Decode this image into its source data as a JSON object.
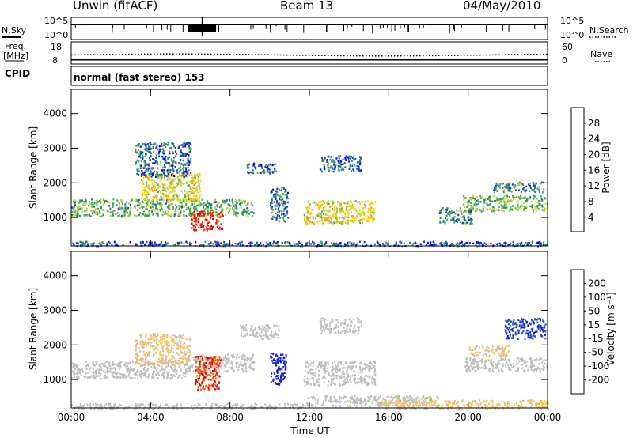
{
  "header": {
    "station": "Unwin (fitACF)",
    "beam": "Beam 13",
    "date": "04/May/2010"
  },
  "summary": {
    "nsky_label": "N.Sky",
    "nsky_ticks": [
      "10^5",
      "10^0"
    ],
    "nsearch_label": "N.Search",
    "nsearch_ticks": [
      "10^5",
      "10^0"
    ],
    "freq_label_1": "Freq.",
    "freq_label_2": "[MHz]",
    "freq_ticks": [
      "18",
      "8"
    ],
    "nave_label": "Nave",
    "nave_ticks": [
      "60",
      "0"
    ],
    "cpid_label": "CPID",
    "cpid_value": "normal (fast stereo) 153"
  },
  "colors": {
    "power": [
      "#0000ff",
      "#1f3fc8",
      "#2e8b57",
      "#4db070",
      "#b8d830",
      "#ffd000",
      "#ff9a00",
      "#ff6a00",
      "#ff2a00",
      "#ee0000"
    ],
    "velocity": [
      "#ee0000",
      "#ff5a00",
      "#ff9a20",
      "#f5c060",
      "#bebebe",
      "#bebebe",
      "#7ccf50",
      "#3c9a3c",
      "#2a50b8",
      "#1020c8"
    ],
    "ground_scatter": "#bebebe"
  },
  "chart_data": [
    {
      "type": "heatmap",
      "name": "power",
      "ylabel": "Slant Range [km]",
      "xlabel": "Time UT",
      "x_ticks": [
        "00:00",
        "04:00",
        "08:00",
        "12:00",
        "16:00",
        "20:00",
        "00:00"
      ],
      "x_range_hours": [
        0,
        24
      ],
      "y_ticks": [
        1000,
        2000,
        3000,
        4000
      ],
      "y_range_km": [
        180,
        4700
      ],
      "colorbar": {
        "label": "Power [dB]",
        "ticks": [
          "28",
          "24",
          "20",
          "16",
          "12",
          "8",
          "4"
        ],
        "range": [
          0,
          30
        ]
      },
      "regions": [
        {
          "t0": 0.0,
          "t1": 9.2,
          "r0": 1050,
          "r1": 1550,
          "level": 10
        },
        {
          "t0": 3.5,
          "t1": 6.5,
          "r0": 1500,
          "r1": 2300,
          "level": 15
        },
        {
          "t0": 3.2,
          "t1": 6.0,
          "r0": 2200,
          "r1": 3200,
          "level": 6
        },
        {
          "t0": 6.0,
          "t1": 7.6,
          "r0": 650,
          "r1": 1200,
          "level": 27
        },
        {
          "t0": 8.8,
          "t1": 10.4,
          "r0": 2300,
          "r1": 2600,
          "level": 6
        },
        {
          "t0": 10.0,
          "t1": 10.9,
          "r0": 900,
          "r1": 1900,
          "level": 7
        },
        {
          "t0": 11.7,
          "t1": 15.3,
          "r0": 850,
          "r1": 1500,
          "level": 16
        },
        {
          "t0": 12.5,
          "t1": 14.6,
          "r0": 2350,
          "r1": 2800,
          "level": 6
        },
        {
          "t0": 18.5,
          "t1": 20.2,
          "r0": 850,
          "r1": 1300,
          "level": 8
        },
        {
          "t0": 19.7,
          "t1": 24.0,
          "r0": 1200,
          "r1": 1650,
          "level": 11
        },
        {
          "t0": 21.2,
          "t1": 23.8,
          "r0": 1750,
          "r1": 2050,
          "level": 8
        },
        {
          "t0": 0.0,
          "t1": 24.0,
          "r0": 180,
          "r1": 330,
          "level": 5
        }
      ]
    },
    {
      "type": "heatmap",
      "name": "velocity",
      "ylabel": "Slant Range [km]",
      "xlabel": "Time UT",
      "x_ticks": [
        "00:00",
        "04:00",
        "08:00",
        "12:00",
        "16:00",
        "20:00",
        "00:00"
      ],
      "x_range_hours": [
        0,
        24
      ],
      "y_ticks": [
        1000,
        2000,
        3000,
        4000
      ],
      "y_range_km": [
        180,
        4700
      ],
      "colorbar": {
        "label": "Velocity [m s⁻¹]",
        "ticks": [
          "200",
          "100",
          "50",
          "15",
          "-15",
          "-50",
          "-100",
          "-200"
        ],
        "range": [
          -250,
          250
        ]
      },
      "regions": [
        {
          "t0": 0.0,
          "t1": 5.8,
          "r0": 1050,
          "r1": 1550,
          "value": 0
        },
        {
          "t0": 3.2,
          "t1": 6.0,
          "r0": 1450,
          "r1": 2350,
          "value": -60
        },
        {
          "t0": 5.8,
          "t1": 9.2,
          "r0": 1250,
          "r1": 1750,
          "value": 0
        },
        {
          "t0": 6.2,
          "t1": 7.5,
          "r0": 700,
          "r1": 1700,
          "value": -200
        },
        {
          "t0": 8.5,
          "t1": 10.5,
          "r0": 2200,
          "r1": 2600,
          "value": 0
        },
        {
          "t0": 10.0,
          "t1": 10.8,
          "r0": 850,
          "r1": 1800,
          "value": 230
        },
        {
          "t0": 11.7,
          "t1": 15.3,
          "r0": 850,
          "r1": 1550,
          "value": 0
        },
        {
          "t0": 12.5,
          "t1": 14.6,
          "r0": 2350,
          "r1": 2800,
          "value": 0
        },
        {
          "t0": 19.8,
          "t1": 24.0,
          "r0": 1250,
          "r1": 1650,
          "value": 0
        },
        {
          "t0": 20.0,
          "t1": 22.0,
          "r0": 1700,
          "r1": 2000,
          "value": -60
        },
        {
          "t0": 21.8,
          "t1": 23.9,
          "r0": 2200,
          "r1": 2800,
          "value": 200
        },
        {
          "t0": 11.8,
          "t1": 18.5,
          "r0": 250,
          "r1": 550,
          "value": 30
        },
        {
          "t0": 15.5,
          "t1": 24.0,
          "r0": 180,
          "r1": 430,
          "value": -70
        },
        {
          "t0": 0.0,
          "t1": 11.8,
          "r0": 180,
          "r1": 330,
          "value": 15
        }
      ]
    }
  ]
}
